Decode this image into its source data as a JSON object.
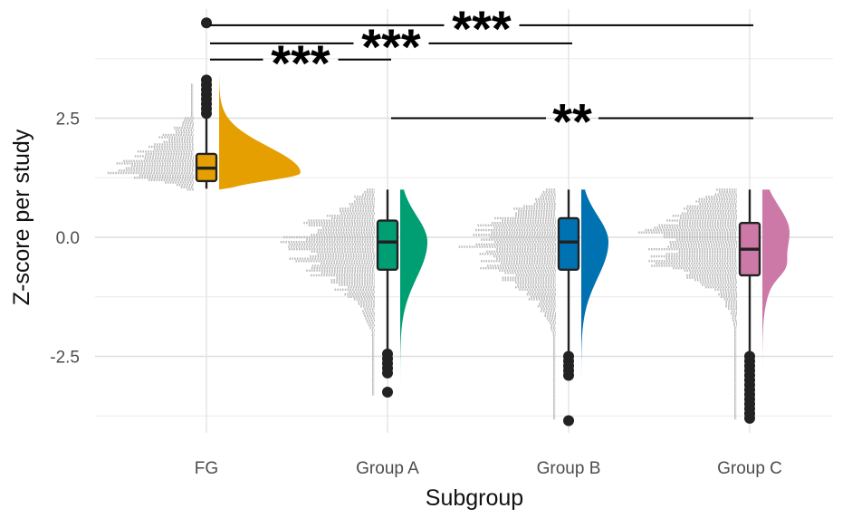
{
  "chart_data": {
    "type": "raincloud",
    "xlabel": "Subgroup",
    "ylabel": "Z-score per study",
    "categories": [
      "FG",
      "Group A",
      "Group B",
      "Group C"
    ],
    "ylim": [
      -4.1,
      4.7
    ],
    "yticks": [
      -2.5,
      0.0,
      2.5
    ],
    "ytick_labels": [
      "-2.5",
      "0.0",
      "2.5"
    ],
    "grid": true,
    "legend": "none",
    "groups": [
      {
        "name": "FG",
        "color": "#E69F00",
        "range": [
          1.0,
          3.4
        ],
        "box": {
          "q1": 1.18,
          "median": 1.45,
          "q3": 1.75,
          "whisker_low": 1.02,
          "whisker_high": 2.5
        },
        "outliers": [
          2.6,
          2.7,
          2.8,
          2.9,
          3.0,
          3.1,
          3.2,
          3.3,
          4.5
        ],
        "density_peak": 1.35
      },
      {
        "name": "Group A",
        "color": "#009E73",
        "range": [
          -3.3,
          1.0
        ],
        "box": {
          "q1": -0.68,
          "median": -0.1,
          "q3": 0.35,
          "whisker_low": -2.35,
          "whisker_high": 1.0
        },
        "outliers": [
          -2.45,
          -2.55,
          -2.65,
          -2.75,
          -2.85,
          -3.25
        ],
        "density_peak": -0.1
      },
      {
        "name": "Group B",
        "color": "#0072B2",
        "range": [
          -3.8,
          1.0
        ],
        "box": {
          "q1": -0.68,
          "median": -0.1,
          "q3": 0.4,
          "whisker_low": -2.4,
          "whisker_high": 1.0
        },
        "outliers": [
          -2.5,
          -2.6,
          -2.7,
          -2.8,
          -2.9,
          -3.85
        ],
        "density_peak": -0.1
      },
      {
        "name": "Group C",
        "color": "#CC79A7",
        "range": [
          -3.8,
          1.0
        ],
        "box": {
          "q1": -0.8,
          "median": -0.25,
          "q3": 0.3,
          "whisker_low": -2.4,
          "whisker_high": 1.0
        },
        "outliers": [
          -2.5,
          -2.6,
          -2.7,
          -2.8,
          -2.9,
          -3.0,
          -3.1,
          -3.2,
          -3.3,
          -3.4,
          -3.5,
          -3.6,
          -3.7,
          -3.8
        ],
        "density_peak": 0.1
      }
    ],
    "comparisons": [
      {
        "from": "FG",
        "to": "Group C",
        "y": 4.45,
        "label": "***"
      },
      {
        "from": "FG",
        "to": "Group B",
        "y": 4.07,
        "label": "***"
      },
      {
        "from": "FG",
        "to": "Group A",
        "y": 3.73,
        "label": "***"
      },
      {
        "from": "Group A",
        "to": "Group C",
        "y": 2.5,
        "label": "**"
      }
    ]
  }
}
